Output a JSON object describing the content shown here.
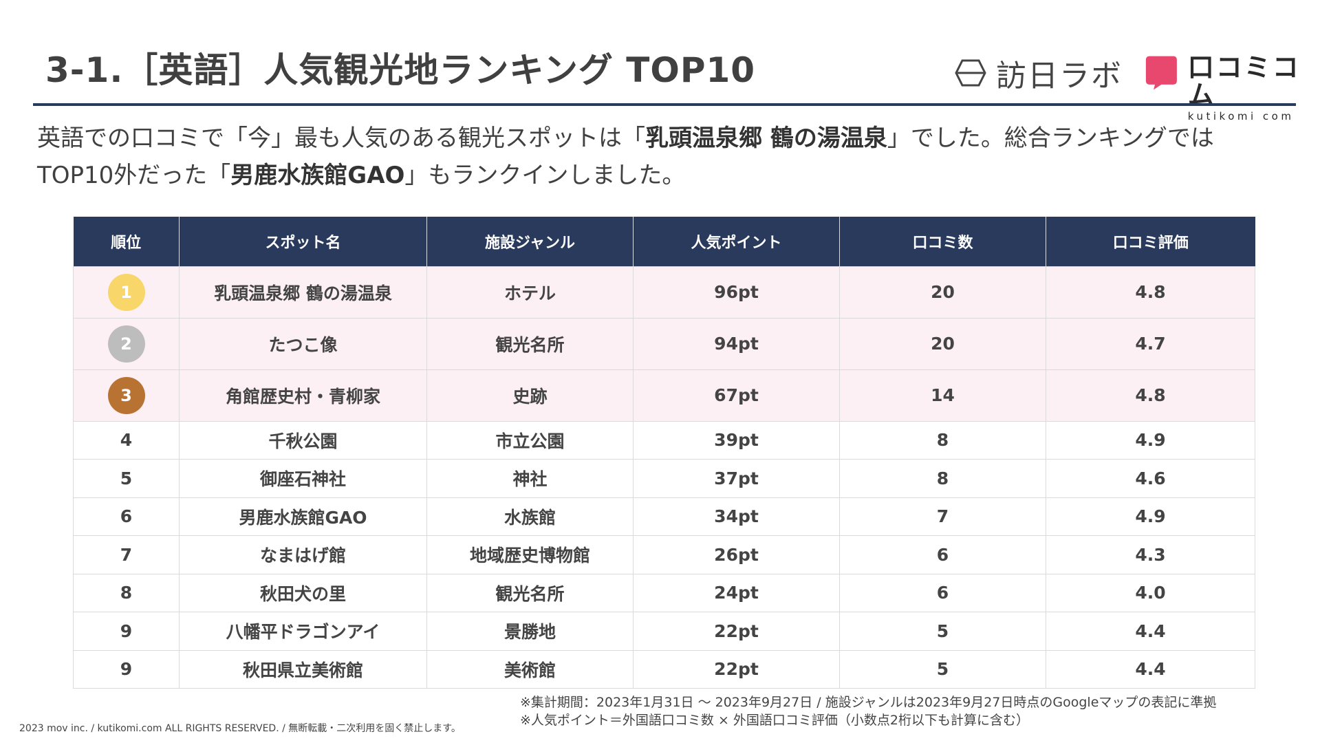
{
  "title": "3-1.［英語］人気観光地ランキング TOP10",
  "logos": {
    "houjitsu": "訪日ラボ",
    "kuchikomi_jp": "口コミコム",
    "kuchikomi_en": "kutikomi com",
    "kuchikomi_color": "#e8486e"
  },
  "intro": {
    "line1_a": "英語での口コミで「今」最も人気のある観光スポットは「",
    "line1_bold": "乳頭温泉郷 鶴の湯温泉",
    "line1_b": "」でした。総合ランキングでは",
    "line2_a": "TOP10外だった「",
    "line2_bold": "男鹿水族館GAO",
    "line2_b": "」もランクインしました。"
  },
  "table": {
    "headers": [
      "順位",
      "スポット名",
      "施設ジャンル",
      "人気ポイント",
      "口コミ数",
      "口コミ評価"
    ],
    "rows": [
      {
        "rank": "1",
        "spot": "乳頭温泉郷 鶴の湯温泉",
        "genre": "ホテル",
        "points": "96pt",
        "count": "20",
        "rating": "4.8"
      },
      {
        "rank": "2",
        "spot": "たつこ像",
        "genre": "観光名所",
        "points": "94pt",
        "count": "20",
        "rating": "4.7"
      },
      {
        "rank": "3",
        "spot": "角館歴史村・青柳家",
        "genre": "史跡",
        "points": "67pt",
        "count": "14",
        "rating": "4.8"
      },
      {
        "rank": "4",
        "spot": "千秋公園",
        "genre": "市立公園",
        "points": "39pt",
        "count": "8",
        "rating": "4.9"
      },
      {
        "rank": "5",
        "spot": "御座石神社",
        "genre": "神社",
        "points": "37pt",
        "count": "8",
        "rating": "4.6"
      },
      {
        "rank": "6",
        "spot": "男鹿水族館GAO",
        "genre": "水族館",
        "points": "34pt",
        "count": "7",
        "rating": "4.9"
      },
      {
        "rank": "7",
        "spot": "なまはげ館",
        "genre": "地域歴史博物館",
        "points": "26pt",
        "count": "6",
        "rating": "4.3"
      },
      {
        "rank": "8",
        "spot": "秋田犬の里",
        "genre": "観光名所",
        "points": "24pt",
        "count": "6",
        "rating": "4.0"
      },
      {
        "rank": "9",
        "spot": "八幡平ドラゴンアイ",
        "genre": "景勝地",
        "points": "22pt",
        "count": "5",
        "rating": "4.4"
      },
      {
        "rank": "9",
        "spot": "秋田県立美術館",
        "genre": "美術館",
        "points": "22pt",
        "count": "5",
        "rating": "4.4"
      }
    ]
  },
  "notes": [
    "※集計期間：2023年1月31日 〜 2023年9月27日 / 施設ジャンルは2023年9月27日時点のGoogleマップの表記に準拠",
    "※人気ポイント＝外国語口コミ数 × 外国語口コミ評価（小数点2桁以下も計算に含む）"
  ],
  "copyright": "2023 mov inc. / kutikomi.com ALL RIGHTS RESERVED. / 無断転載・二次利用を固く禁止します。",
  "colors": {
    "header_bg": "#2a3a5c",
    "top3_row_bg": "#fdf0f4",
    "medal_gold": "#f8d66a",
    "medal_silver": "#bdbdbd",
    "medal_bronze": "#b87333"
  }
}
